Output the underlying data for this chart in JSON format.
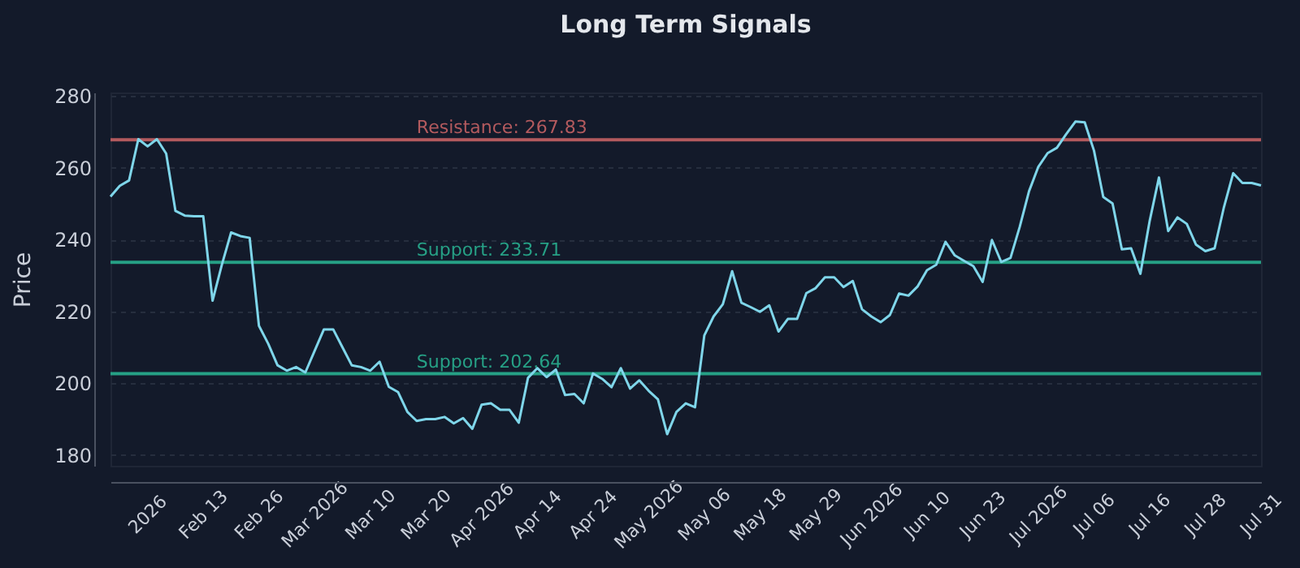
{
  "chart_data": {
    "type": "line",
    "title": "Long Term Signals",
    "ylabel": "Price",
    "categories": [
      null,
      null,
      null,
      null,
      "2026",
      null,
      null,
      null,
      null,
      null,
      "Feb 13",
      null,
      null,
      null,
      null,
      null,
      "Feb 26",
      null,
      null,
      null,
      null,
      null,
      "Mar 2026",
      null,
      null,
      null,
      null,
      null,
      "Mar 10",
      null,
      null,
      null,
      null,
      null,
      "Mar 20",
      null,
      null,
      null,
      null,
      null,
      "Apr 2026",
      null,
      null,
      null,
      null,
      null,
      "Apr 14",
      null,
      null,
      null,
      null,
      null,
      "Apr 24",
      null,
      null,
      null,
      null,
      null,
      "May 2026",
      null,
      null,
      null,
      null,
      null,
      "May 06",
      null,
      null,
      null,
      null,
      null,
      "May 18",
      null,
      null,
      null,
      null,
      null,
      "May 29",
      null,
      null,
      null,
      null,
      null,
      "Jun 2026",
      null,
      null,
      null,
      null,
      null,
      "Jun 10",
      null,
      null,
      null,
      null,
      null,
      "Jun 23",
      null,
      null,
      null,
      null,
      null,
      "Jul 2026",
      null,
      null,
      null,
      null,
      null,
      "Jul 06",
      null,
      null,
      null,
      null,
      null,
      "Jul 16",
      null,
      null,
      null,
      null,
      null,
      "Jul 28",
      null,
      null,
      null,
      null,
      null,
      "Jul 31"
    ],
    "series": [
      {
        "color": "#7fd6ea",
        "values": [
          252,
          255,
          256.5,
          268,
          266,
          268,
          264,
          248,
          246.7,
          246.5,
          246.5,
          223,
          233,
          242,
          241,
          240.5,
          216,
          211,
          205,
          203.5,
          204.5,
          203,
          209,
          215,
          215,
          210,
          205,
          204.5,
          203.5,
          206,
          199,
          197.5,
          192,
          189.5,
          190,
          190,
          190.6,
          188.8,
          190.3,
          187.3,
          194,
          194.4,
          192.6,
          192.6,
          189,
          201.5,
          204.2,
          201.7,
          203.8,
          196.7,
          197,
          194.4,
          202.7,
          201.2,
          198.9,
          204.2,
          198.5,
          200.8,
          197.9,
          195.5,
          185.8,
          192,
          194.4,
          193.3,
          213.3,
          218.6,
          222,
          231.2,
          222.4,
          221.2,
          219.9,
          221.7,
          214.4,
          217.9,
          217.9,
          225.1,
          226.5,
          229.5,
          229.5,
          226.8,
          228.5,
          220.6,
          218.6,
          217,
          219,
          225,
          224.4,
          227,
          231.5,
          233,
          239.4,
          235.6,
          234.1,
          232.6,
          228.2,
          239.9,
          233.8,
          234.9,
          243.6,
          253.5,
          260.3,
          264.1,
          265.6,
          269.4,
          272.9,
          272.7,
          264.8,
          251.9,
          250.1,
          237.3,
          237.6,
          230.5,
          245.2,
          257.3,
          242.4,
          246.2,
          244.4,
          238.6,
          236.8,
          237.6,
          249,
          258.5,
          255.8,
          255.8,
          255.1
        ]
      }
    ],
    "ylim": [
      177,
      281
    ],
    "yticks": [
      180,
      200,
      220,
      240,
      260,
      280
    ],
    "grid": "y",
    "legend": false,
    "marker": "none",
    "line_style": "solid",
    "ref_lines": [
      {
        "axis": "y",
        "value": 267.83,
        "label": "Resistance: 267.83",
        "color": "#b35a5e"
      },
      {
        "axis": "y",
        "value": 233.71,
        "label": "Support: 233.71",
        "color": "#26a085"
      },
      {
        "axis": "y",
        "value": 202.64,
        "label": "Support: 202.64",
        "color": "#26a085"
      }
    ]
  }
}
